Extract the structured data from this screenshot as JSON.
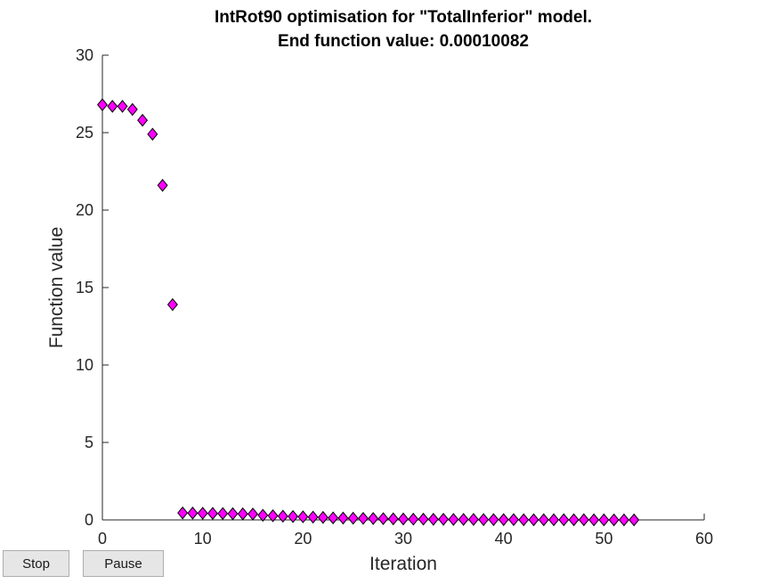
{
  "controls": {
    "stop_label": "Stop",
    "pause_label": "Pause"
  },
  "colors": {
    "marker_fill": "#ff00ff",
    "marker_stroke": "#000000",
    "axis": "#262626"
  },
  "chart_data": {
    "type": "scatter",
    "title": [
      "IntRot90 optimisation for \"TotalInferior\" model.",
      "End function value: 0.00010082"
    ],
    "xlabel": "Iteration",
    "ylabel": "Function value",
    "xlim": [
      0,
      60
    ],
    "ylim": [
      0,
      30
    ],
    "xticks": [
      0,
      10,
      20,
      30,
      40,
      50,
      60
    ],
    "yticks": [
      0,
      5,
      10,
      15,
      20,
      25,
      30
    ],
    "grid": false,
    "marker": "diamond",
    "x": [
      0,
      1,
      2,
      3,
      4,
      5,
      6,
      7,
      8,
      9,
      10,
      11,
      12,
      13,
      14,
      15,
      16,
      17,
      18,
      19,
      20,
      21,
      22,
      23,
      24,
      25,
      26,
      27,
      28,
      29,
      30,
      31,
      32,
      33,
      34,
      35,
      36,
      37,
      38,
      39,
      40,
      41,
      42,
      43,
      44,
      45,
      46,
      47,
      48,
      49,
      50,
      51,
      52,
      53
    ],
    "y": [
      26.8,
      26.7,
      26.7,
      26.5,
      25.8,
      24.9,
      21.6,
      13.9,
      0.45,
      0.44,
      0.43,
      0.42,
      0.41,
      0.4,
      0.39,
      0.38,
      0.3,
      0.27,
      0.24,
      0.22,
      0.2,
      0.18,
      0.16,
      0.13,
      0.12,
      0.11,
      0.1,
      0.09,
      0.08,
      0.07,
      0.06,
      0.05,
      0.05,
      0.04,
      0.04,
      0.03,
      0.03,
      0.03,
      0.02,
      0.02,
      0.02,
      0.02,
      0.01,
      0.01,
      0.01,
      0.01,
      0.01,
      0.01,
      0.01,
      0.005,
      0.002,
      0.001,
      0.0005,
      0.0001
    ]
  }
}
